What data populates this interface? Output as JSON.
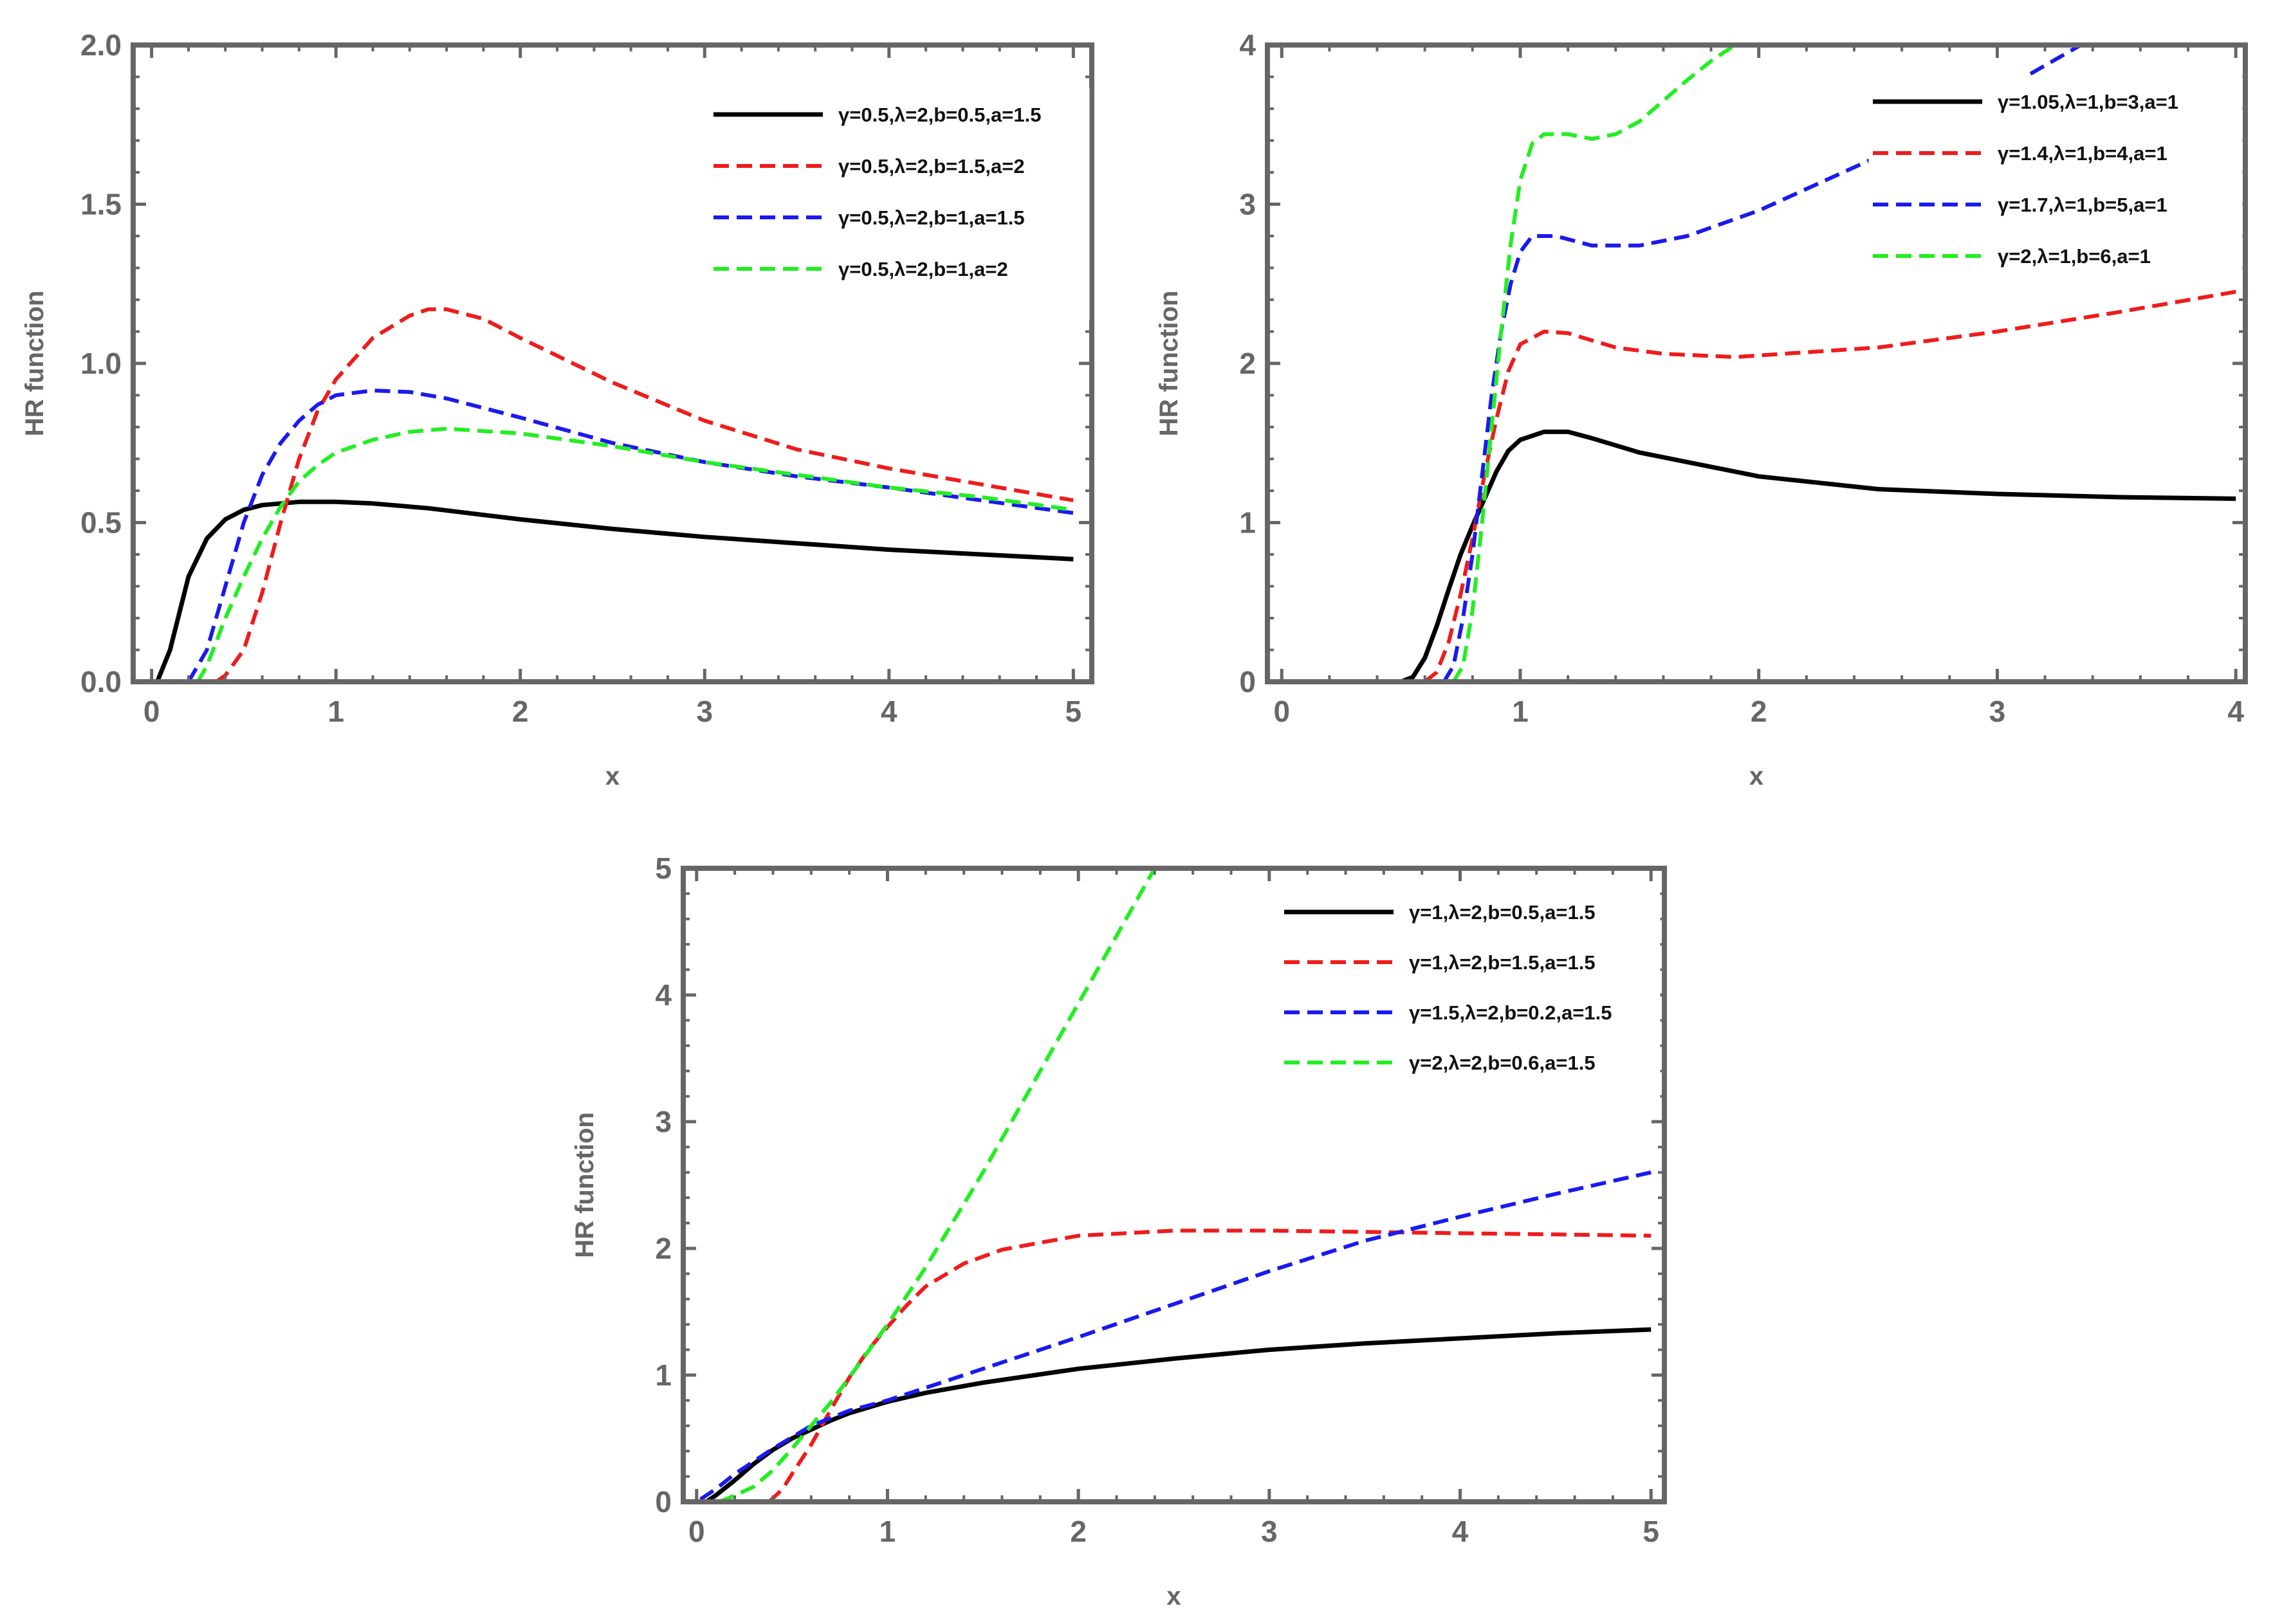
{
  "chart_data": [
    {
      "type": "line",
      "xlabel": "x",
      "ylabel": "HR function",
      "xlim": [
        -0.1,
        5.1
      ],
      "ylim": [
        0,
        2
      ],
      "xticks": [
        0,
        1,
        2,
        3,
        4,
        5
      ],
      "xtick_labels": [
        "0",
        "1",
        "2",
        "3",
        "4",
        "5"
      ],
      "yticks": [
        0,
        0.5,
        1,
        1.5,
        2
      ],
      "ytick_labels": [
        "0.0",
        "0.5",
        "1.0",
        "1.5",
        "2.0"
      ],
      "legend_position": "top-right",
      "series": [
        {
          "name": "γ=0.5,λ=2,b=0.5,a=1.5",
          "color": "#000000",
          "dash": "solid",
          "x": [
            0.03,
            0.1,
            0.2,
            0.3,
            0.4,
            0.5,
            0.6,
            0.7,
            0.8,
            0.9,
            1.0,
            1.2,
            1.5,
            2.0,
            2.5,
            3.0,
            3.5,
            4.0,
            4.5,
            5.0
          ],
          "y": [
            0,
            0.1,
            0.33,
            0.45,
            0.51,
            0.54,
            0.555,
            0.56,
            0.565,
            0.565,
            0.565,
            0.56,
            0.545,
            0.51,
            0.48,
            0.455,
            0.435,
            0.415,
            0.4,
            0.385
          ]
        },
        {
          "name": "γ=0.5,λ=2,b=1.5,a=2",
          "color": "#ee1c1c",
          "dash": "dashed",
          "x": [
            0.35,
            0.4,
            0.5,
            0.6,
            0.7,
            0.8,
            0.9,
            1.0,
            1.2,
            1.4,
            1.5,
            1.6,
            1.8,
            2.0,
            2.5,
            3.0,
            3.5,
            4.0,
            4.5,
            5.0
          ],
          "y": [
            0,
            0.02,
            0.1,
            0.28,
            0.5,
            0.7,
            0.85,
            0.95,
            1.08,
            1.15,
            1.17,
            1.17,
            1.14,
            1.08,
            0.94,
            0.82,
            0.73,
            0.67,
            0.62,
            0.57
          ]
        },
        {
          "name": "γ=0.5,λ=2,b=1,a=1.5",
          "color": "#1a1aee",
          "dash": "dashed",
          "x": [
            0.2,
            0.3,
            0.4,
            0.5,
            0.6,
            0.7,
            0.8,
            0.9,
            1.0,
            1.2,
            1.4,
            1.6,
            2.0,
            2.5,
            3.0,
            3.5,
            4.0,
            4.5,
            5.0
          ],
          "y": [
            0,
            0.1,
            0.3,
            0.5,
            0.65,
            0.75,
            0.82,
            0.87,
            0.9,
            0.915,
            0.91,
            0.89,
            0.83,
            0.75,
            0.69,
            0.645,
            0.61,
            0.57,
            0.53
          ]
        },
        {
          "name": "γ=0.5,λ=2,b=1,a=2",
          "color": "#22ee22",
          "dash": "dashed",
          "x": [
            0.25,
            0.3,
            0.4,
            0.5,
            0.6,
            0.7,
            0.8,
            0.9,
            1.0,
            1.2,
            1.4,
            1.6,
            2.0,
            2.5,
            3.0,
            3.5,
            4.0,
            4.5,
            5.0
          ],
          "y": [
            0,
            0.05,
            0.2,
            0.33,
            0.45,
            0.55,
            0.63,
            0.68,
            0.72,
            0.76,
            0.785,
            0.795,
            0.78,
            0.74,
            0.69,
            0.65,
            0.61,
            0.58,
            0.54
          ]
        }
      ]
    },
    {
      "type": "line",
      "xlabel": "x",
      "ylabel": "HR function",
      "xlim": [
        -0.06,
        4.04
      ],
      "ylim": [
        0,
        4
      ],
      "xticks": [
        0,
        1,
        2,
        3,
        4
      ],
      "xtick_labels": [
        "0",
        "1",
        "2",
        "3",
        "4"
      ],
      "yticks": [
        0,
        1,
        2,
        3,
        4
      ],
      "ytick_labels": [
        "0",
        "1",
        "2",
        "3",
        "4"
      ],
      "legend_position": "top-right",
      "series": [
        {
          "name": "γ=1.05,λ=1,b=3,a=1",
          "color": "#000000",
          "dash": "solid",
          "x": [
            0.5,
            0.55,
            0.6,
            0.65,
            0.7,
            0.75,
            0.8,
            0.85,
            0.9,
            0.95,
            1.0,
            1.1,
            1.2,
            1.3,
            1.5,
            2.0,
            2.5,
            3.0,
            3.5,
            4.0
          ],
          "y": [
            0,
            0.03,
            0.15,
            0.35,
            0.58,
            0.8,
            0.98,
            1.15,
            1.32,
            1.45,
            1.52,
            1.57,
            1.57,
            1.53,
            1.44,
            1.29,
            1.21,
            1.18,
            1.16,
            1.15
          ]
        },
        {
          "name": "γ=1.4,λ=1,b=4,a=1",
          "color": "#ee1c1c",
          "dash": "dashed",
          "x": [
            0.6,
            0.65,
            0.7,
            0.75,
            0.8,
            0.85,
            0.9,
            0.95,
            1.0,
            1.1,
            1.2,
            1.4,
            1.6,
            1.9,
            2.5,
            3.0,
            3.5,
            4.0
          ],
          "y": [
            0,
            0.06,
            0.25,
            0.55,
            0.9,
            1.3,
            1.65,
            1.95,
            2.12,
            2.2,
            2.19,
            2.1,
            2.06,
            2.04,
            2.1,
            2.2,
            2.32,
            2.45
          ]
        },
        {
          "name": "γ=1.7,λ=1,b=5,a=1",
          "color": "#1a1aee",
          "dash": "dashed",
          "x": [
            0.68,
            0.72,
            0.76,
            0.8,
            0.84,
            0.88,
            0.92,
            0.96,
            1.0,
            1.05,
            1.15,
            1.3,
            1.5,
            1.7,
            2.0,
            2.5,
            3.0,
            3.35
          ],
          "y": [
            0,
            0.1,
            0.4,
            0.8,
            1.3,
            1.8,
            2.2,
            2.5,
            2.7,
            2.8,
            2.8,
            2.74,
            2.74,
            2.8,
            2.96,
            3.3,
            3.7,
            4.0
          ]
        },
        {
          "name": "γ=2,λ=1,b=6,a=1",
          "color": "#22ee22",
          "dash": "dashed",
          "x": [
            0.72,
            0.76,
            0.8,
            0.84,
            0.88,
            0.92,
            0.96,
            1.0,
            1.05,
            1.1,
            1.2,
            1.3,
            1.4,
            1.5,
            1.6,
            1.7,
            1.8,
            1.9
          ],
          "y": [
            0,
            0.1,
            0.45,
            1.0,
            1.6,
            2.2,
            2.75,
            3.15,
            3.38,
            3.44,
            3.44,
            3.41,
            3.44,
            3.52,
            3.65,
            3.78,
            3.9,
            4.0
          ]
        }
      ]
    },
    {
      "type": "line",
      "xlabel": "x",
      "ylabel": "HR function",
      "xlim": [
        -0.07,
        5.07
      ],
      "ylim": [
        0,
        5
      ],
      "xticks": [
        0,
        1,
        2,
        3,
        4,
        5
      ],
      "xtick_labels": [
        "0",
        "1",
        "2",
        "3",
        "4",
        "5"
      ],
      "yticks": [
        0,
        1,
        2,
        3,
        4,
        5
      ],
      "ytick_labels": [
        "0",
        "1",
        "2",
        "3",
        "4",
        "5"
      ],
      "legend_position": "top-right",
      "series": [
        {
          "name": "γ=1,λ=2,b=0.5,a=1.5",
          "color": "#000000",
          "dash": "solid",
          "x": [
            0.05,
            0.1,
            0.2,
            0.3,
            0.4,
            0.5,
            0.6,
            0.7,
            0.8,
            1.0,
            1.2,
            1.5,
            2.0,
            2.5,
            3.0,
            3.5,
            4.0,
            4.5,
            5.0
          ],
          "y": [
            0,
            0.05,
            0.17,
            0.3,
            0.41,
            0.5,
            0.57,
            0.64,
            0.7,
            0.79,
            0.86,
            0.94,
            1.05,
            1.13,
            1.2,
            1.25,
            1.29,
            1.33,
            1.36
          ]
        },
        {
          "name": "γ=1,λ=2,b=1.5,a=1.5",
          "color": "#ee1c1c",
          "dash": "dashed",
          "x": [
            0.38,
            0.45,
            0.5,
            0.6,
            0.7,
            0.8,
            0.9,
            1.0,
            1.1,
            1.2,
            1.4,
            1.6,
            2.0,
            2.5,
            3.0,
            3.5,
            4.0,
            4.5,
            5.0
          ],
          "y": [
            0,
            0.1,
            0.22,
            0.45,
            0.72,
            0.98,
            1.2,
            1.38,
            1.55,
            1.7,
            1.88,
            1.99,
            2.1,
            2.14,
            2.14,
            2.13,
            2.12,
            2.11,
            2.1
          ]
        },
        {
          "name": "γ=1.5,λ=2,b=0.2,a=1.5",
          "color": "#1a1aee",
          "dash": "dashed",
          "x": [
            0.02,
            0.1,
            0.2,
            0.4,
            0.6,
            0.8,
            1.0,
            1.5,
            2.0,
            2.5,
            3.0,
            3.5,
            4.0,
            4.5,
            5.0
          ],
          "y": [
            0.02,
            0.1,
            0.22,
            0.42,
            0.6,
            0.72,
            0.8,
            1.05,
            1.3,
            1.56,
            1.82,
            2.06,
            2.25,
            2.43,
            2.6
          ]
        },
        {
          "name": "γ=2,λ=2,b=0.6,a=1.5",
          "color": "#22ee22",
          "dash": "dashed",
          "x": [
            0.12,
            0.2,
            0.3,
            0.4,
            0.5,
            0.6,
            0.7,
            0.8,
            1.0,
            1.2,
            1.5,
            1.8,
            2.1,
            2.4
          ],
          "y": [
            0,
            0.05,
            0.12,
            0.25,
            0.42,
            0.6,
            0.78,
            0.98,
            1.4,
            1.85,
            2.6,
            3.4,
            4.2,
            5.0
          ]
        }
      ]
    }
  ]
}
